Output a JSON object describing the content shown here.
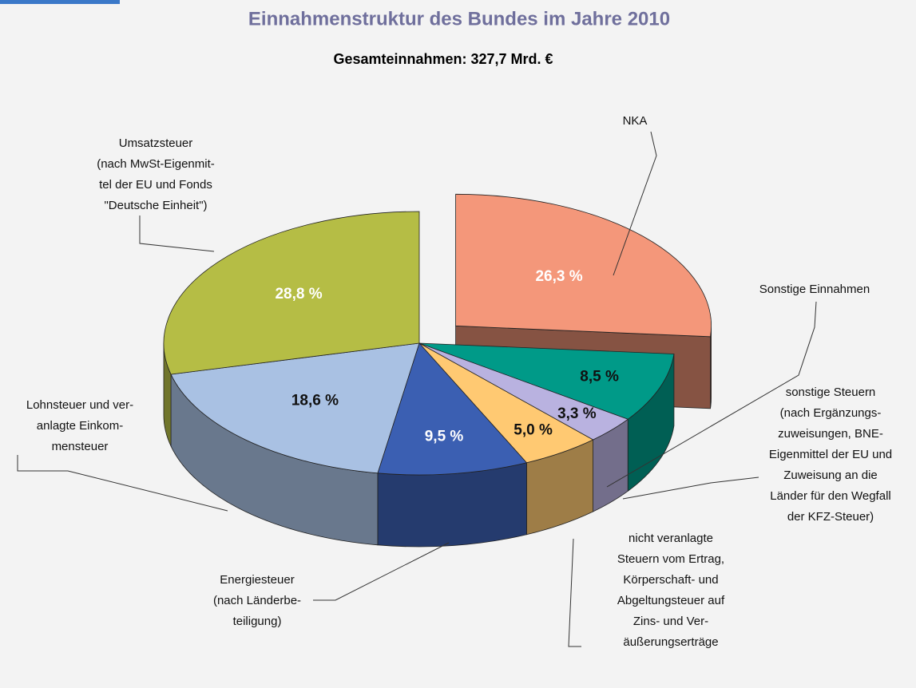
{
  "chart_data": {
    "type": "pie",
    "title": "Einnahmenstruktur des Bundes im Jahre 2010",
    "subtitle": "Gesamteinnahmen: 327,7 Mrd. €",
    "categories": [
      [
        "NKA"
      ],
      [
        "Sonstige Einnahmen"
      ],
      [
        "sonstige Steuern",
        "(nach Ergänzungs-",
        "zuweisungen, BNE-",
        "Eigenmittel der EU und",
        "Zuweisung an die",
        "Länder für den Wegfall",
        "der KFZ-Steuer)"
      ],
      [
        "nicht veranlagte",
        "Steuern vom Ertrag,",
        "Körperschaft- und",
        "Abgeltungsteuer auf",
        "Zins- und Ver-",
        "äußerungserträge"
      ],
      [
        "Energiesteuer",
        "(nach Länderbe-",
        "teiligung)"
      ],
      [
        "Lohnsteuer und ver-",
        "anlagte Einkom-",
        "mensteuer"
      ],
      [
        "Umsatzsteuer",
        "(nach MwSt-Eigenmit-",
        "tel der EU und Fonds",
        "\"Deutsche Einheit\")"
      ]
    ],
    "values": [
      26.3,
      8.5,
      3.3,
      5.0,
      9.5,
      18.6,
      28.8
    ],
    "value_labels": [
      "26,3 %",
      "8,5 %",
      "3,3 %",
      "5,0 %",
      "9,5 %",
      "18,6 %",
      "28,8 %"
    ],
    "colors": [
      "#f4977a",
      "#009a88",
      "#b9b2e0",
      "#ffc972",
      "#3b5fb2",
      "#a9c1e3",
      "#b5bd45"
    ],
    "exploded": [
      0
    ]
  }
}
